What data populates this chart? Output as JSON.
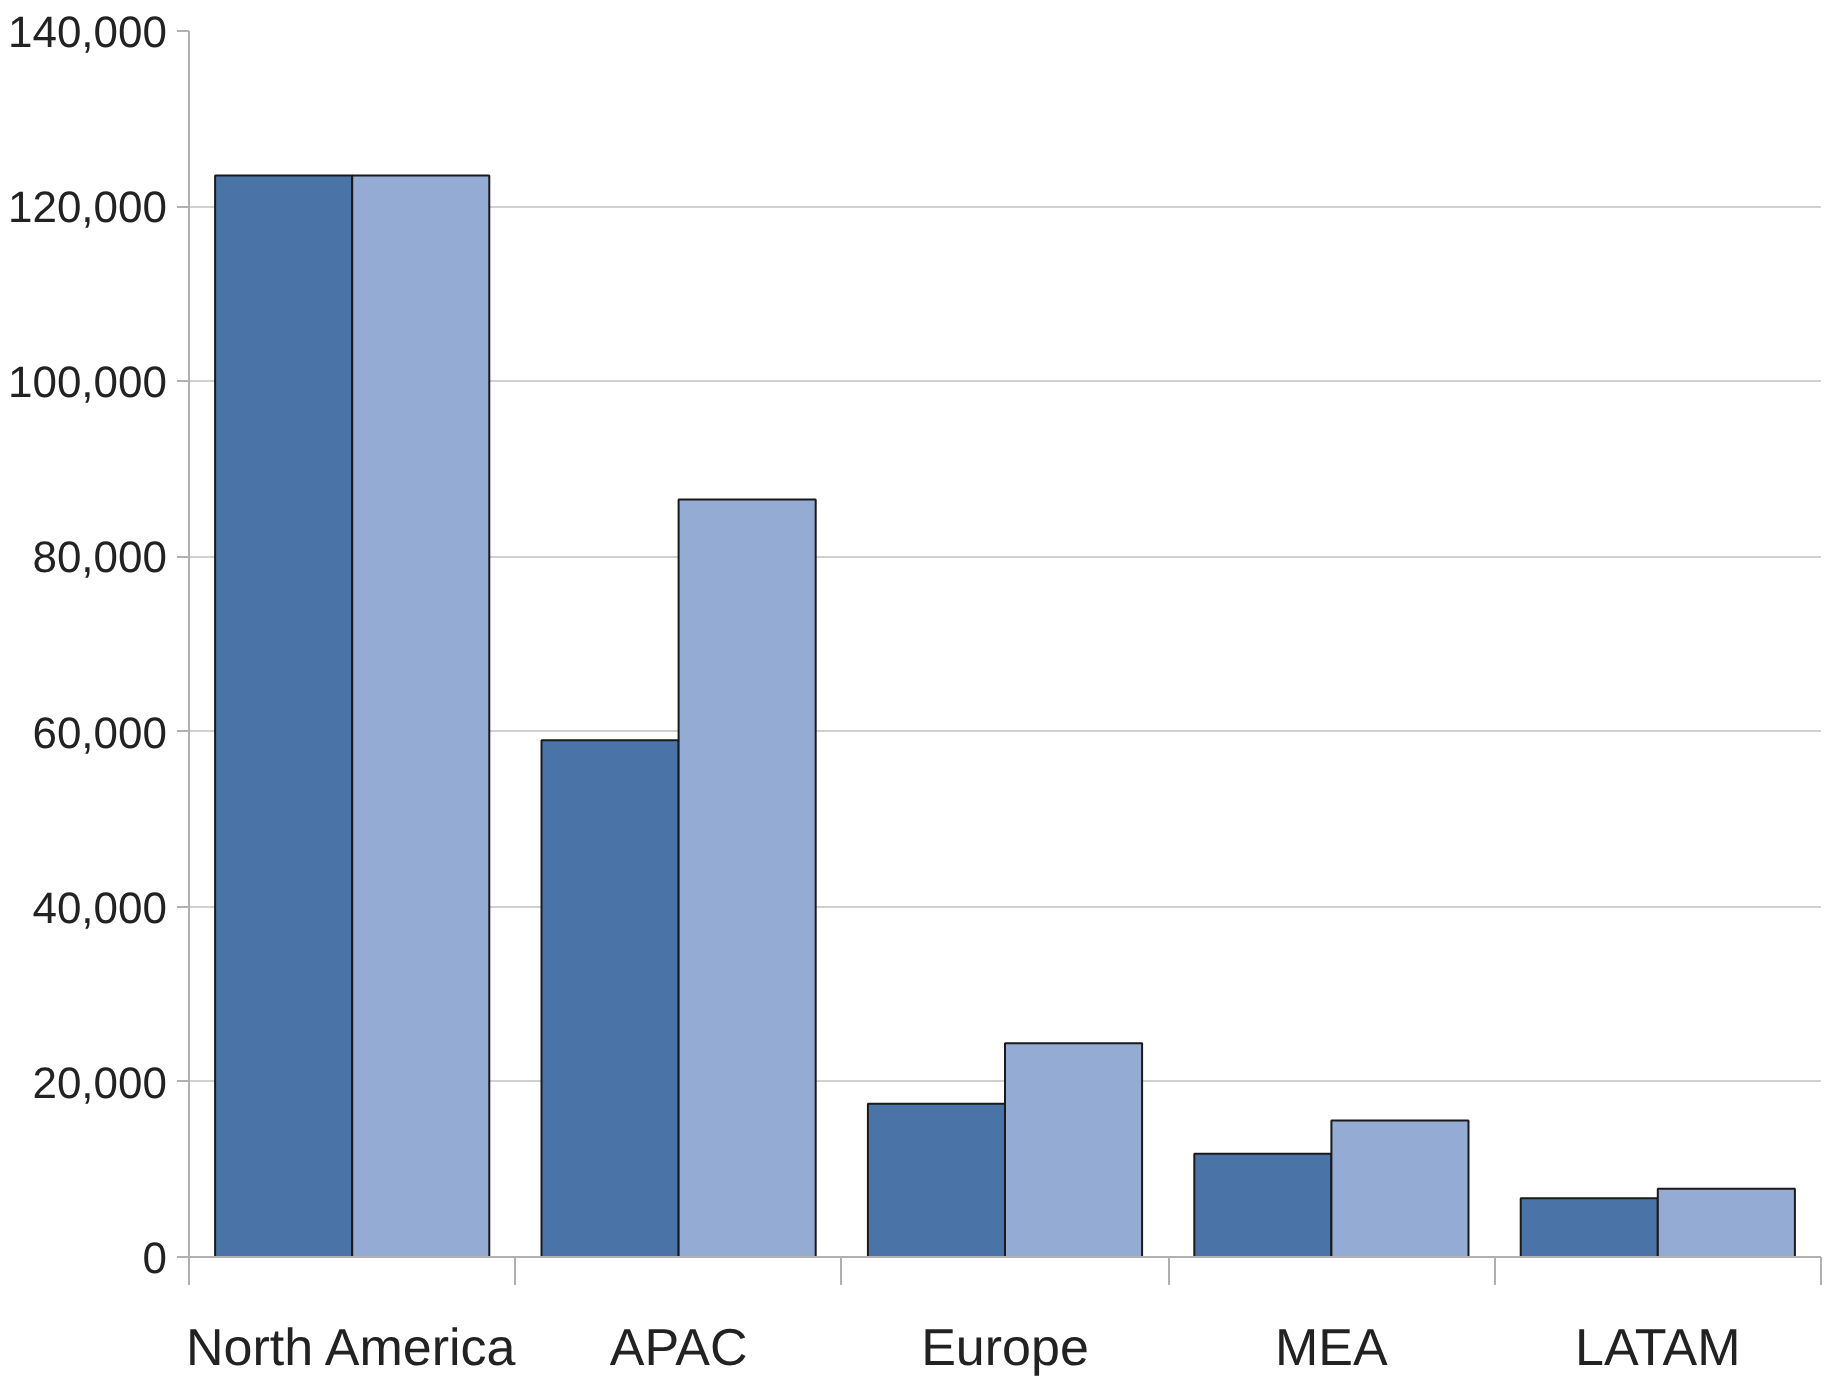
{
  "chart_data": {
    "type": "bar",
    "categories": [
      "North America",
      "APAC",
      "Europe",
      "MEA",
      "LATAM"
    ],
    "series": [
      {
        "color": "#4a74a8",
        "values": [
          123500,
          59000,
          17500,
          11800,
          6700
        ]
      },
      {
        "color": "#94abd3",
        "values": [
          123500,
          86500,
          24400,
          15600,
          7800
        ]
      }
    ],
    "ylim": [
      0,
      140000
    ],
    "yticks": [
      {
        "value": 0,
        "label": "0"
      },
      {
        "value": 20000,
        "label": "20,000"
      },
      {
        "value": 40000,
        "label": "40,000"
      },
      {
        "value": 60000,
        "label": "60,000"
      },
      {
        "value": 80000,
        "label": "80,000"
      },
      {
        "value": 100000,
        "label": "100,000"
      },
      {
        "value": 120000,
        "label": "120,000"
      },
      {
        "value": 140000,
        "label": "140,000"
      }
    ],
    "grid": "y"
  }
}
